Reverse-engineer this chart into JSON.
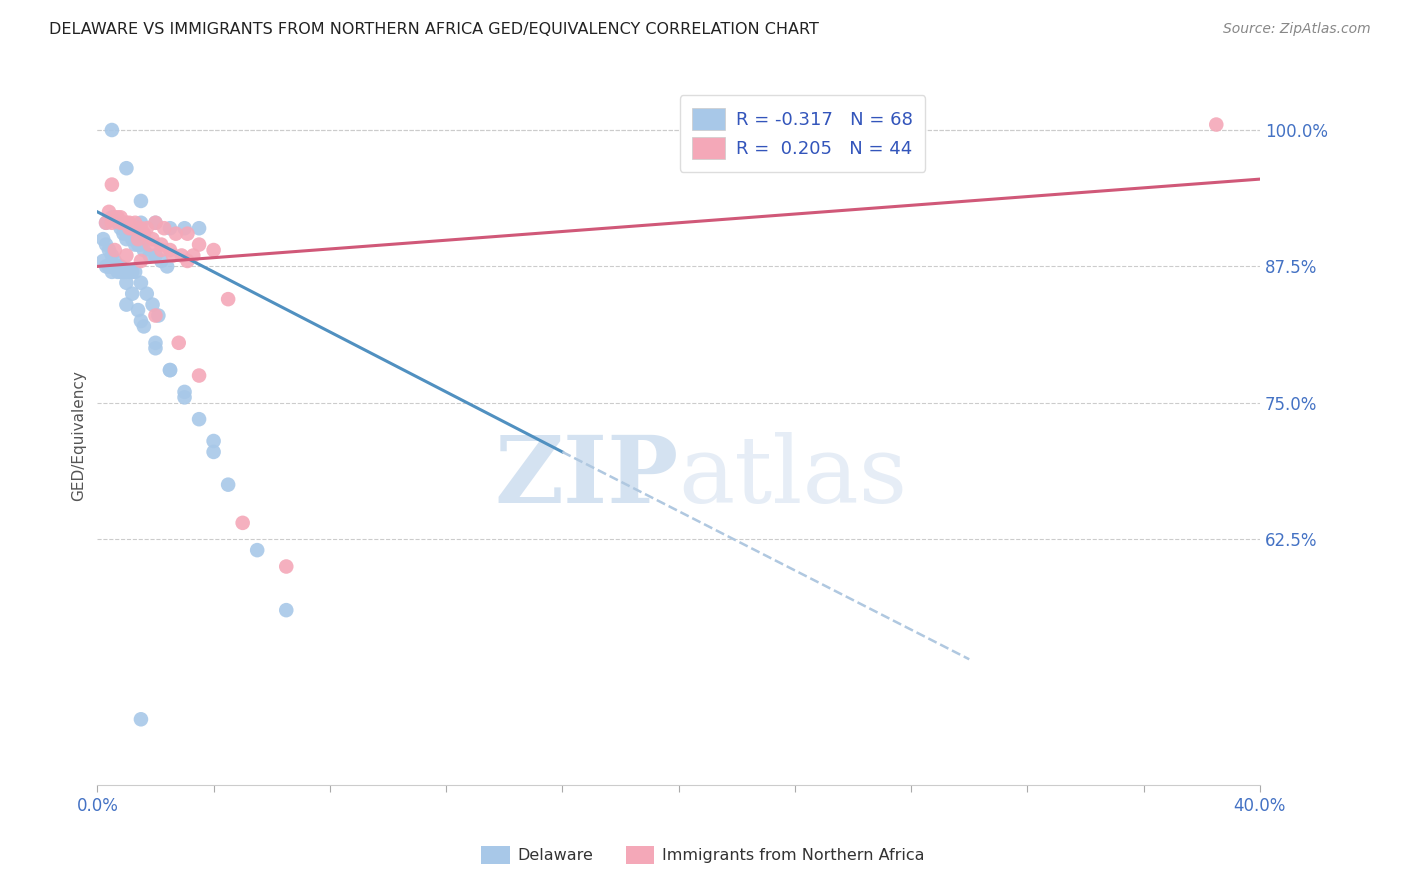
{
  "title": "DELAWARE VS IMMIGRANTS FROM NORTHERN AFRICA GED/EQUIVALENCY CORRELATION CHART",
  "source": "Source: ZipAtlas.com",
  "ylabel": "GED/Equivalency",
  "x_min": 0.0,
  "x_max": 40.0,
  "y_min": 40.0,
  "y_max": 104.0,
  "y_ticks": [
    100.0,
    87.5,
    75.0,
    62.5
  ],
  "y_tick_labels": [
    "100.0%",
    "87.5%",
    "75.0%",
    "62.5%"
  ],
  "legend_R1": "R = -0.317",
  "legend_N1": "N = 68",
  "legend_R2": "R =  0.205",
  "legend_N2": "N = 44",
  "blue_color": "#a8c8e8",
  "pink_color": "#f4a8b8",
  "blue_line_color": "#5090c0",
  "pink_line_color": "#d05878",
  "dashed_line_color": "#b0c8e0",
  "watermark_zip": "ZIP",
  "watermark_atlas": "atlas",
  "blue_dots_x": [
    0.5,
    1.0,
    1.5,
    1.5,
    2.0,
    2.5,
    3.0,
    3.5,
    0.3,
    0.5,
    0.7,
    0.8,
    0.9,
    1.0,
    1.1,
    1.2,
    1.3,
    1.4,
    1.5,
    1.6,
    1.8,
    2.0,
    2.2,
    2.4,
    0.2,
    0.3,
    0.4,
    0.5,
    0.6,
    0.7,
    0.8,
    0.9,
    1.0,
    1.1,
    1.2,
    1.3,
    1.5,
    1.7,
    1.9,
    2.1,
    0.2,
    0.3,
    0.4,
    0.5,
    0.6,
    0.7,
    0.8,
    1.0,
    1.2,
    1.4,
    1.6,
    2.0,
    2.5,
    3.0,
    3.5,
    4.0,
    0.4,
    0.5,
    1.0,
    1.5,
    2.0,
    2.5,
    3.0,
    4.0,
    4.5,
    5.5,
    6.5,
    1.5
  ],
  "blue_dots_y": [
    100.0,
    96.5,
    93.5,
    91.5,
    91.5,
    91.0,
    91.0,
    91.0,
    91.5,
    92.0,
    91.5,
    91.0,
    90.5,
    90.0,
    90.5,
    90.0,
    89.5,
    89.5,
    89.5,
    89.0,
    88.5,
    88.5,
    88.0,
    87.5,
    90.0,
    89.5,
    89.0,
    88.5,
    88.0,
    87.5,
    87.5,
    87.0,
    87.0,
    87.0,
    87.0,
    87.0,
    86.0,
    85.0,
    84.0,
    83.0,
    88.0,
    87.5,
    87.5,
    87.5,
    87.5,
    87.0,
    87.0,
    86.0,
    85.0,
    83.5,
    82.0,
    80.0,
    78.0,
    76.0,
    73.5,
    71.5,
    87.5,
    87.0,
    84.0,
    82.5,
    80.5,
    78.0,
    75.5,
    70.5,
    67.5,
    61.5,
    56.0,
    46.0
  ],
  "pink_dots_x": [
    0.3,
    0.5,
    0.7,
    0.9,
    1.1,
    1.3,
    1.5,
    1.7,
    2.0,
    2.3,
    2.7,
    3.1,
    3.5,
    4.0,
    0.4,
    0.6,
    0.8,
    1.0,
    1.2,
    1.4,
    1.6,
    1.9,
    2.2,
    2.5,
    2.9,
    3.3,
    0.5,
    0.8,
    1.1,
    1.4,
    1.8,
    2.2,
    2.6,
    3.1,
    4.5,
    0.6,
    1.0,
    1.5,
    2.0,
    2.8,
    3.5,
    5.0,
    6.5,
    38.5
  ],
  "pink_dots_y": [
    91.5,
    91.5,
    92.0,
    91.5,
    91.5,
    91.5,
    91.0,
    91.0,
    91.5,
    91.0,
    90.5,
    90.5,
    89.5,
    89.0,
    92.5,
    92.0,
    91.5,
    91.5,
    91.0,
    91.0,
    90.5,
    90.0,
    89.5,
    89.0,
    88.5,
    88.5,
    95.0,
    92.0,
    91.0,
    90.0,
    89.5,
    89.0,
    88.5,
    88.0,
    84.5,
    89.0,
    88.5,
    88.0,
    83.0,
    80.5,
    77.5,
    64.0,
    60.0,
    100.5
  ],
  "blue_line_x": [
    0.0,
    16.0
  ],
  "blue_line_y": [
    92.5,
    70.5
  ],
  "pink_line_x": [
    0.0,
    40.0
  ],
  "pink_line_y": [
    87.5,
    95.5
  ],
  "dashed_line_x": [
    16.0,
    30.0
  ],
  "dashed_line_y": [
    70.5,
    51.5
  ]
}
